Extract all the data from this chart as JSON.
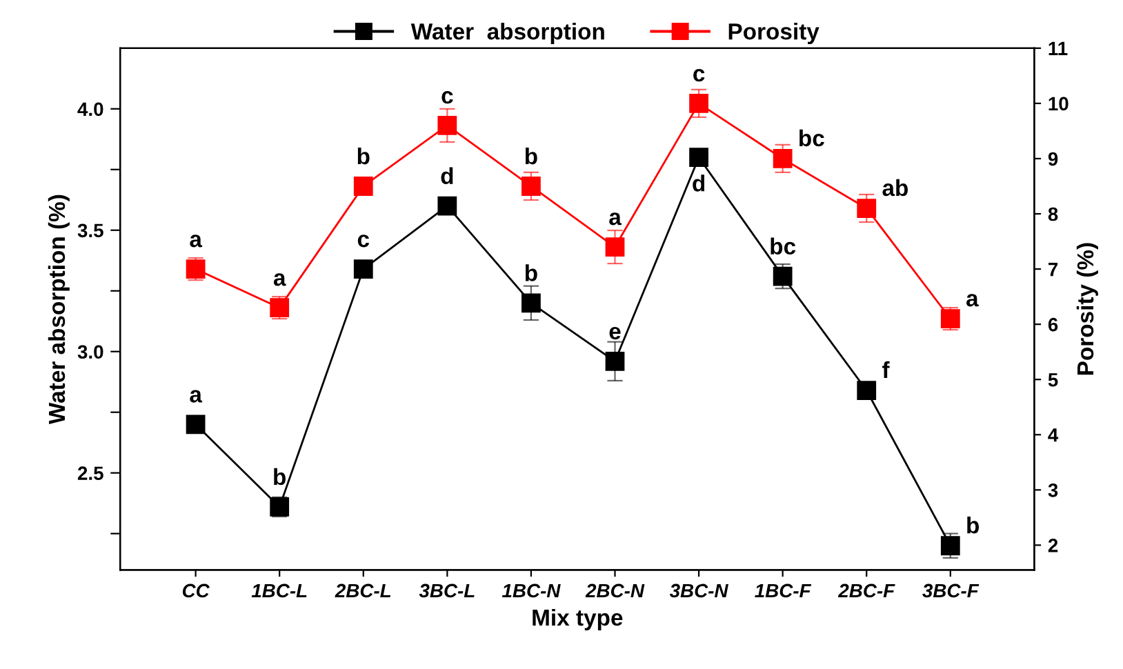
{
  "chart_data": {
    "type": "line",
    "xlabel": "Mix type",
    "ylabel": "Water absorption (%)",
    "y2label": "Porosity (%)",
    "categories": [
      "CC",
      "1BC-L",
      "2BC-L",
      "3BC-L",
      "1BC-N",
      "2BC-N",
      "3BC-N",
      "1BC-F",
      "2BC-F",
      "3BC-F"
    ],
    "series": [
      {
        "name": "Water  absorption",
        "color": "#000000",
        "values": [
          2.7,
          2.36,
          3.34,
          3.6,
          3.2,
          2.96,
          3.8,
          3.31,
          2.84,
          2.2
        ],
        "errors": [
          0.03,
          0.04,
          0.03,
          0.02,
          0.07,
          0.08,
          0.02,
          0.05,
          0.03,
          0.05
        ],
        "value_labels": [
          "a",
          "b",
          "c",
          "d",
          "b",
          "e",
          "d",
          "bc",
          "f",
          "b"
        ]
      },
      {
        "name": "Porosity",
        "color": "#ff0000",
        "axis": "y2",
        "values": [
          7.0,
          6.3,
          8.5,
          9.6,
          8.5,
          7.4,
          10.0,
          9.0,
          8.1,
          6.1
        ],
        "errors": [
          0.2,
          0.2,
          0.15,
          0.3,
          0.25,
          0.3,
          0.25,
          0.25,
          0.25,
          0.2
        ],
        "value_labels": [
          "a",
          "a",
          "b",
          "c",
          "b",
          "a",
          "c",
          "bc",
          "ab",
          "a"
        ]
      }
    ],
    "ylim": [
      2.1,
      4.25
    ],
    "yticks": [
      {
        "value": 2.25,
        "label": null
      },
      2.5,
      {
        "value": 2.75,
        "label": null
      },
      {
        "value": 3,
        "label": "3.0"
      },
      {
        "value": 3.25,
        "label": null
      },
      3.5,
      {
        "value": 3.75,
        "label": null
      },
      {
        "value": 4,
        "label": "4.0"
      }
    ],
    "y2lim": [
      1.55,
      11
    ],
    "y2ticks": [
      2,
      3,
      4,
      5,
      6,
      7,
      8,
      9,
      10,
      11
    ],
    "marker": "square",
    "line_style": "solid",
    "legend": "top",
    "grid": false
  }
}
